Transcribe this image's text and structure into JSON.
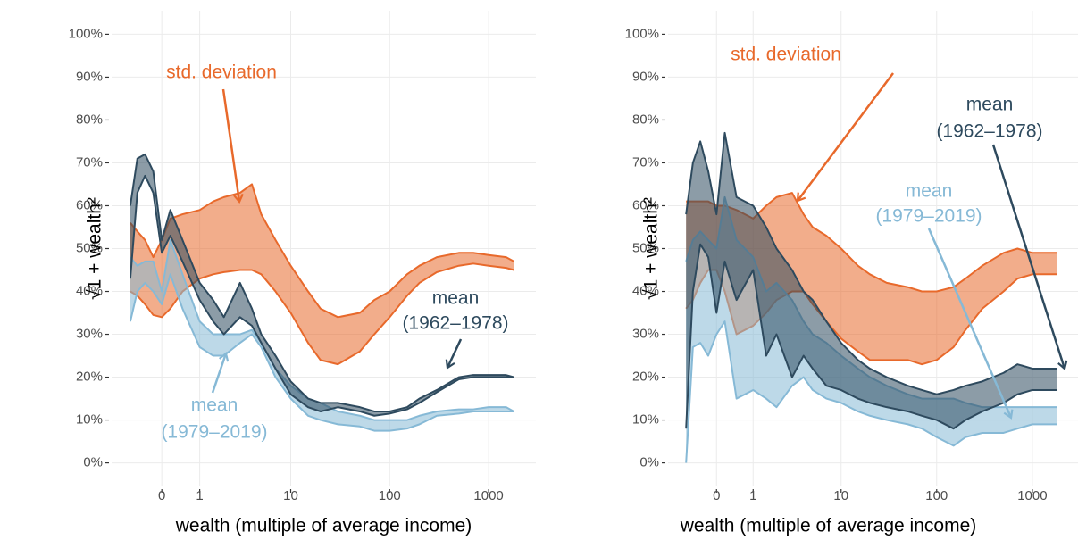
{
  "chart_data": [
    {
      "type": "area",
      "xscale": "asinh",
      "grid": true,
      "xlabel": "wealth (multiple of average income)",
      "ylabel": "√1 + wealth²",
      "xlim": [
        -1.45,
        3000
      ],
      "ylim": [
        -5.5,
        105.5
      ],
      "xticks": [
        0,
        1,
        10,
        100,
        1000
      ],
      "yticks": [
        {
          "value": 0,
          "label": "0%"
        },
        {
          "value": 10,
          "label": "10%"
        },
        {
          "value": 20,
          "label": "20%"
        },
        {
          "value": 30,
          "label": "30%"
        },
        {
          "value": 40,
          "label": "40%"
        },
        {
          "value": 50,
          "label": "50%"
        },
        {
          "value": 60,
          "label": "60%"
        },
        {
          "value": 70,
          "label": "70%"
        },
        {
          "value": 80,
          "label": "80%"
        },
        {
          "value": 90,
          "label": "90%"
        },
        {
          "value": 100,
          "label": "100%"
        }
      ],
      "x": [
        -0.8,
        -0.6,
        -0.4,
        -0.2,
        0,
        0.2,
        0.5,
        1,
        1.5,
        2,
        3,
        4,
        5,
        7,
        10,
        15,
        20,
        30,
        50,
        70,
        100,
        150,
        200,
        300,
        500,
        700,
        1000,
        1500,
        1800
      ],
      "series": [
        {
          "name": "std. deviation",
          "color": "#e8692b",
          "upper": [
            56,
            54,
            52,
            48,
            52,
            57,
            58,
            59,
            61,
            62,
            63,
            65,
            58,
            52,
            46,
            40,
            36,
            34,
            35,
            38,
            40,
            44,
            46,
            48,
            49,
            49,
            48.5,
            48,
            47
          ],
          "lower": [
            40,
            39,
            37,
            34.5,
            34,
            36,
            40,
            43,
            44,
            44.5,
            45,
            45,
            44,
            40,
            35,
            28,
            24,
            23,
            26,
            30,
            34,
            39,
            42,
            44.5,
            46,
            46.5,
            46,
            45.5,
            45
          ]
        },
        {
          "name": [
            "mean",
            "(1979–2019)"
          ],
          "color": "#86b9d6",
          "upper": [
            48,
            46,
            47,
            47,
            40,
            52,
            44,
            33,
            30,
            30,
            30,
            31,
            28,
            22,
            18,
            15,
            14,
            12,
            11,
            10,
            10,
            10,
            11,
            12,
            12.5,
            12.5,
            13,
            13,
            12
          ],
          "lower": [
            33,
            40,
            42,
            40,
            37,
            44,
            36,
            27,
            25,
            25,
            28,
            30,
            27,
            20,
            15,
            11,
            10,
            9,
            8.5,
            7.5,
            7.5,
            8,
            9,
            11,
            11.5,
            12,
            12,
            12,
            12
          ]
        },
        {
          "name": [
            "mean",
            "(1962–1978)"
          ],
          "color": "#2e4a5e",
          "upper": [
            60,
            71,
            72,
            68,
            52,
            59,
            52,
            42,
            38,
            34,
            42,
            36,
            30,
            25,
            19,
            15,
            14,
            14,
            13,
            12,
            12,
            13,
            15,
            17,
            20,
            20.5,
            20.5,
            20.5,
            20
          ],
          "lower": [
            43,
            63,
            67,
            63,
            49,
            53,
            47,
            38,
            33,
            30,
            34,
            32,
            28,
            22,
            16,
            13,
            12,
            13,
            12,
            11,
            11.5,
            12.5,
            14,
            16.5,
            19.5,
            20,
            20,
            20,
            20
          ]
        }
      ]
    },
    {
      "type": "area",
      "xscale": "asinh",
      "grid": true,
      "xlabel": "wealth (multiple of average income)",
      "ylabel": "√1 + wealth²",
      "xlim": [
        -1.45,
        3000
      ],
      "ylim": [
        -5.5,
        105.5
      ],
      "xticks": [
        0,
        1,
        10,
        100,
        1000
      ],
      "yticks": [
        {
          "value": 0,
          "label": "0%"
        },
        {
          "value": 10,
          "label": "10%"
        },
        {
          "value": 20,
          "label": "20%"
        },
        {
          "value": 30,
          "label": "30%"
        },
        {
          "value": 40,
          "label": "40%"
        },
        {
          "value": 50,
          "label": "50%"
        },
        {
          "value": 60,
          "label": "60%"
        },
        {
          "value": 70,
          "label": "70%"
        },
        {
          "value": 80,
          "label": "80%"
        },
        {
          "value": 90,
          "label": "90%"
        },
        {
          "value": 100,
          "label": "100%"
        }
      ],
      "x": [
        -0.8,
        -0.6,
        -0.4,
        -0.2,
        0,
        0.2,
        0.5,
        1,
        1.5,
        2,
        3,
        4,
        5,
        7,
        10,
        15,
        20,
        30,
        50,
        70,
        100,
        150,
        200,
        300,
        500,
        700,
        1000,
        1500,
        1800
      ],
      "series": [
        {
          "name": "std. deviation",
          "color": "#e8692b",
          "upper": [
            61,
            61,
            61,
            61,
            60,
            60,
            59,
            57,
            60,
            62,
            63,
            58,
            55,
            53,
            50,
            46,
            44,
            42,
            41,
            40,
            40,
            41,
            43,
            46,
            49,
            50,
            49,
            49,
            49
          ],
          "lower": [
            36,
            38,
            42,
            45,
            45,
            40,
            30,
            32,
            35,
            38,
            40,
            40,
            37,
            33,
            29,
            26,
            24,
            24,
            24,
            23,
            24,
            27,
            31,
            36,
            40,
            43,
            44,
            44,
            44
          ]
        },
        {
          "name": [
            "mean",
            "(1979–2019)"
          ],
          "color": "#86b9d6",
          "upper": [
            47,
            52,
            54,
            52,
            50,
            62,
            52,
            48,
            40,
            42,
            38,
            33,
            30,
            28,
            25,
            22,
            20,
            18,
            16,
            15,
            15,
            15,
            14,
            13,
            13,
            13,
            13,
            13,
            13
          ],
          "lower": [
            0,
            27,
            28,
            25,
            30,
            33,
            15,
            17,
            15,
            13,
            18,
            20,
            17,
            15,
            14,
            12,
            11,
            10,
            9,
            8,
            6,
            4,
            6,
            7,
            7,
            8,
            9,
            9,
            9
          ]
        },
        {
          "name": [
            "mean",
            "(1962–1978)"
          ],
          "color": "#2e4a5e",
          "upper": [
            58,
            70,
            75,
            68,
            58,
            77,
            62,
            60,
            55,
            50,
            45,
            40,
            38,
            33,
            28,
            24,
            22,
            20,
            18,
            17,
            16,
            17,
            18,
            19,
            21,
            23,
            22,
            22,
            22
          ],
          "lower": [
            8,
            40,
            51,
            48,
            35,
            47,
            38,
            45,
            25,
            30,
            20,
            25,
            22,
            18,
            17,
            15,
            14,
            13,
            12,
            11,
            10,
            8,
            10,
            12,
            14,
            16,
            17,
            17,
            17
          ]
        }
      ]
    }
  ]
}
